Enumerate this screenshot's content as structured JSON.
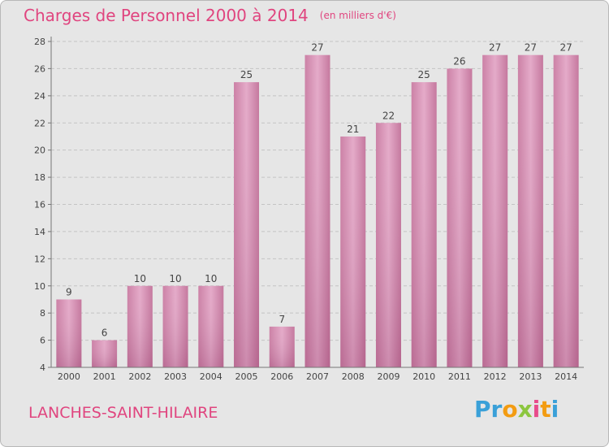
{
  "chart_data": {
    "type": "bar",
    "title": "Charges de Personnel 2000 à 2014",
    "subtitle": "(en milliers d'€)",
    "categories": [
      "2000",
      "2001",
      "2002",
      "2003",
      "2004",
      "2005",
      "2006",
      "2007",
      "2008",
      "2009",
      "2010",
      "2011",
      "2012",
      "2013",
      "2014"
    ],
    "values": [
      9,
      6,
      10,
      10,
      10,
      25,
      7,
      27,
      21,
      22,
      25,
      26,
      27,
      27,
      27
    ],
    "yticks": [
      "4",
      "6",
      "8",
      "10",
      "12",
      "14",
      "16",
      "18",
      "20",
      "22",
      "24",
      "26",
      "28"
    ],
    "ylim": [
      4,
      28
    ],
    "grid": true,
    "bar_color": "#d48aae"
  },
  "commune": "LANCHES-SAINT-HILAIRE",
  "logo": {
    "letters": [
      "P",
      "r",
      "o",
      "x",
      "i",
      "t",
      "i"
    ],
    "colors": [
      "#3aa0d8",
      "#3aa0d8",
      "#f39c12",
      "#8cc63f",
      "#e84c8b",
      "#f39c12",
      "#3aa0d8"
    ]
  }
}
